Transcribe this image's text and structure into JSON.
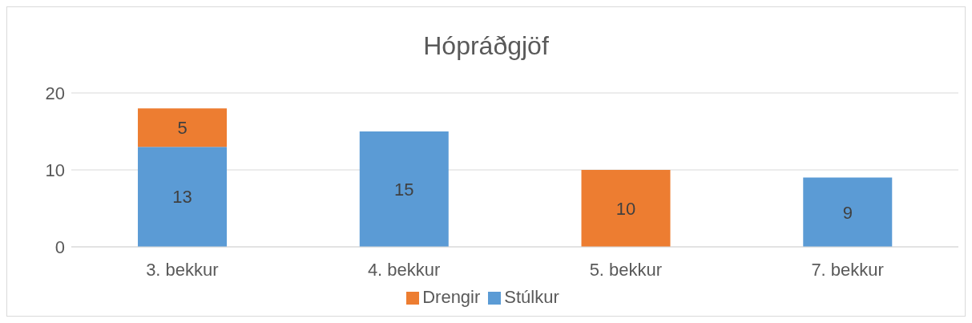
{
  "chart_data": {
    "type": "bar",
    "title": "Hópráðgjöf",
    "categories": [
      "3. bekkur",
      "4. bekkur",
      "5. bekkur",
      "7. bekkur"
    ],
    "stacked": true,
    "series": [
      {
        "name": "Stúlkur",
        "color": "#5b9bd5",
        "values": [
          13,
          15,
          null,
          9
        ]
      },
      {
        "name": "Drengir",
        "color": "#ed7d31",
        "values": [
          5,
          null,
          10,
          null
        ]
      }
    ],
    "ylim": [
      0,
      20
    ],
    "yticks": [
      0,
      10,
      20
    ],
    "grid": "y",
    "legend": "bottom",
    "data_labels": true
  }
}
